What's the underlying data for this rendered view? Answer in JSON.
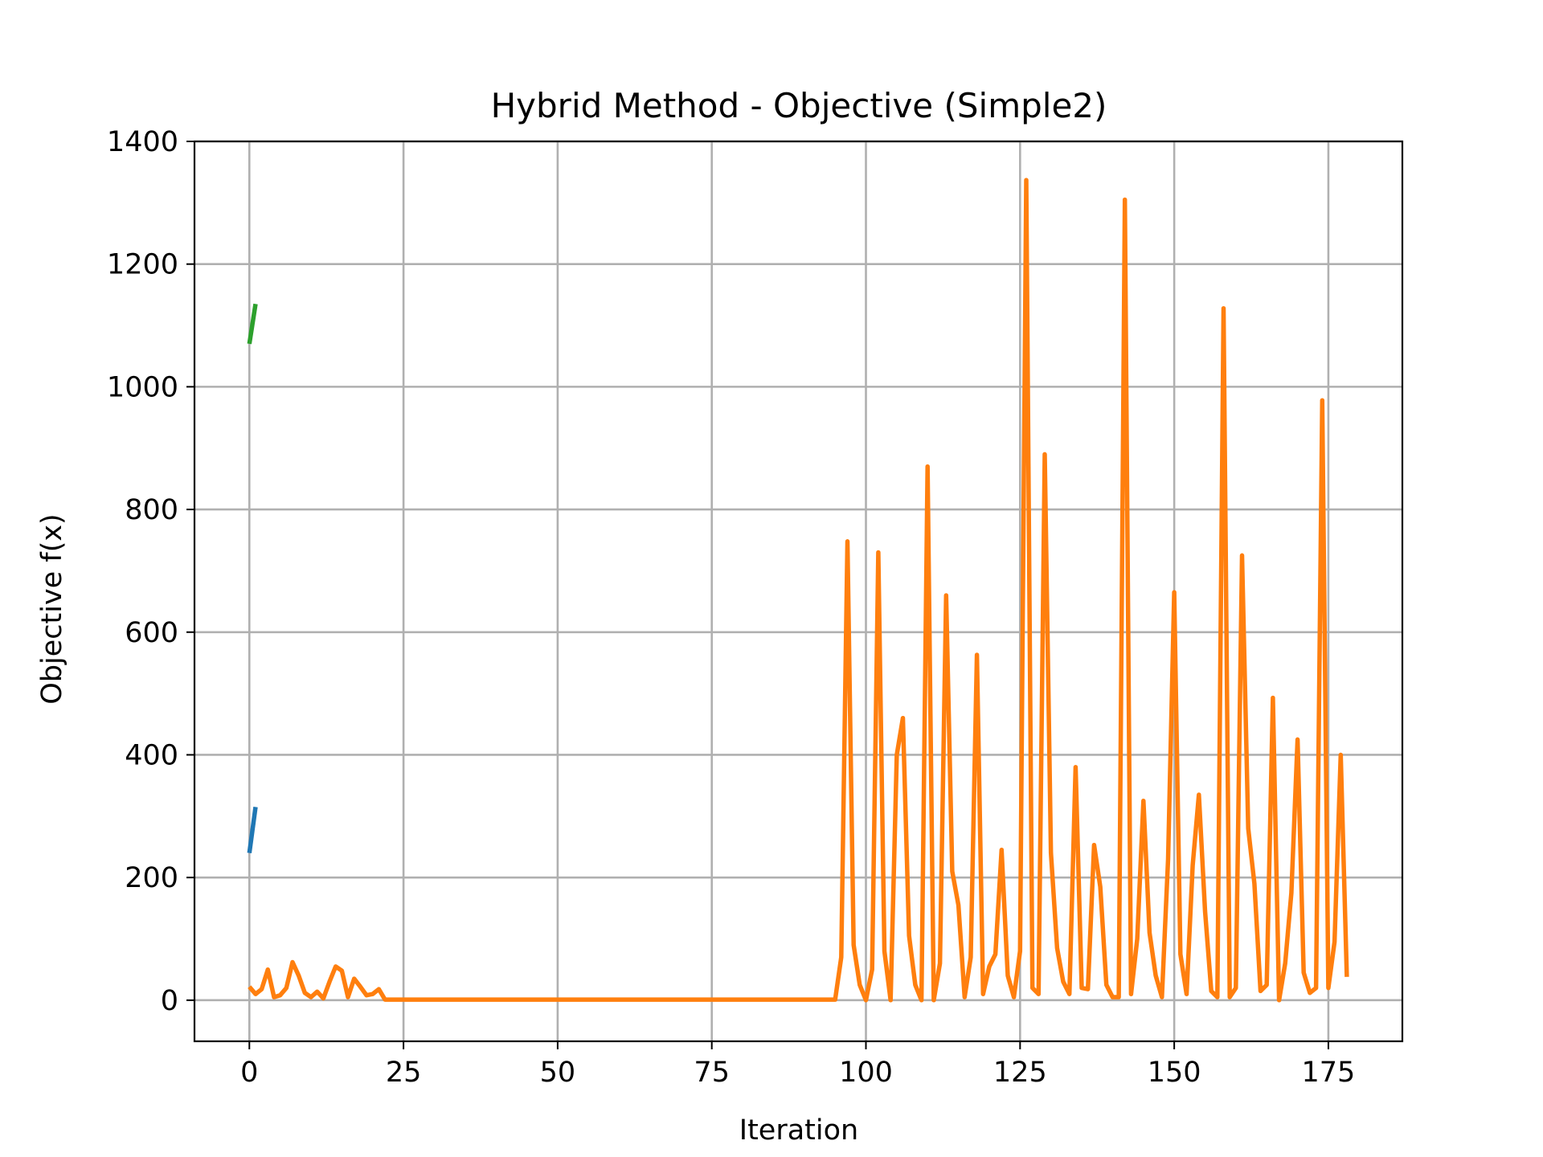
{
  "chart_data": {
    "type": "line",
    "title": "Hybrid Method - Objective (Simple2)",
    "xlabel": "Iteration",
    "ylabel": "Objective f(x)",
    "xlim": [
      -8.9,
      187
    ],
    "ylim": [
      -67,
      1400
    ],
    "xticks": [
      0,
      25,
      50,
      75,
      100,
      125,
      150,
      175
    ],
    "yticks": [
      0,
      200,
      400,
      600,
      800,
      1000,
      1200,
      1400
    ],
    "grid": true,
    "series": [
      {
        "color": "#1f77b4",
        "x": [
          0,
          1
        ],
        "y": [
          240,
          315
        ]
      },
      {
        "color": "#ff7f0e",
        "x": [
          0,
          1,
          2,
          3,
          4,
          5,
          6,
          7,
          8,
          9,
          10,
          11,
          12,
          13,
          14,
          15,
          16,
          17,
          18,
          19,
          20,
          21,
          22,
          23,
          24,
          25,
          26,
          27,
          28,
          29,
          30,
          31,
          32,
          33,
          34,
          35,
          36,
          37,
          38,
          39,
          40,
          41,
          42,
          43,
          44,
          45,
          46,
          47,
          48,
          49,
          50,
          51,
          52,
          53,
          54,
          55,
          56,
          57,
          58,
          59,
          60,
          61,
          62,
          63,
          64,
          65,
          66,
          67,
          68,
          69,
          70,
          71,
          72,
          73,
          74,
          75,
          76,
          77,
          78,
          79,
          80,
          81,
          82,
          83,
          84,
          85,
          86,
          87,
          88,
          89,
          90,
          91,
          92,
          93,
          94,
          95,
          96,
          97,
          98,
          99,
          100,
          101,
          102,
          103,
          104,
          105,
          106,
          107,
          108,
          109,
          110,
          111,
          112,
          113,
          114,
          115,
          116,
          117,
          118,
          119,
          120,
          121,
          122,
          123,
          124,
          125,
          126,
          127,
          128,
          129,
          130,
          131,
          132,
          133,
          134,
          135,
          136,
          137,
          138,
          139,
          140,
          141,
          142,
          143,
          144,
          145,
          146,
          147,
          148,
          149,
          150,
          151,
          152,
          153,
          154,
          155,
          156,
          157,
          158,
          159,
          160,
          161,
          162,
          163,
          164,
          165,
          166,
          167,
          168,
          169,
          170,
          171,
          172,
          173,
          174,
          175,
          176,
          177,
          178
        ],
        "y": [
          22,
          10,
          18,
          50,
          5,
          8,
          20,
          62,
          40,
          12,
          5,
          14,
          3,
          30,
          55,
          48,
          5,
          35,
          22,
          8,
          10,
          18,
          1,
          1,
          1,
          1,
          1,
          1,
          1,
          1,
          1,
          1,
          1,
          1,
          1,
          1,
          1,
          1,
          1,
          1,
          1,
          1,
          1,
          1,
          1,
          1,
          1,
          1,
          1,
          1,
          1,
          1,
          1,
          1,
          1,
          1,
          1,
          1,
          1,
          1,
          1,
          1,
          1,
          1,
          1,
          1,
          1,
          1,
          1,
          1,
          1,
          1,
          1,
          1,
          1,
          1,
          1,
          1,
          1,
          1,
          1,
          1,
          1,
          1,
          1,
          1,
          1,
          1,
          1,
          1,
          1,
          1,
          1,
          1,
          1,
          1,
          70,
          748,
          90,
          25,
          0,
          50,
          730,
          80,
          0,
          400,
          460,
          105,
          25,
          0,
          870,
          0,
          60,
          660,
          210,
          155,
          5,
          70,
          563,
          10,
          55,
          75,
          245,
          40,
          5,
          80,
          1337,
          20,
          10,
          890,
          240,
          85,
          30,
          10,
          380,
          20,
          18,
          253,
          185,
          25,
          5,
          5,
          1305,
          10,
          100,
          325,
          110,
          40,
          5,
          230,
          665,
          75,
          10,
          220,
          335,
          145,
          15,
          5,
          1128,
          5,
          20,
          725,
          280,
          190,
          15,
          25,
          493,
          0,
          60,
          175,
          425,
          45,
          12,
          20,
          978,
          20,
          95,
          400,
          38
        ]
      },
      {
        "color": "#2ca02c",
        "x": [
          0,
          1
        ],
        "y": [
          1070,
          1135
        ]
      }
    ]
  }
}
